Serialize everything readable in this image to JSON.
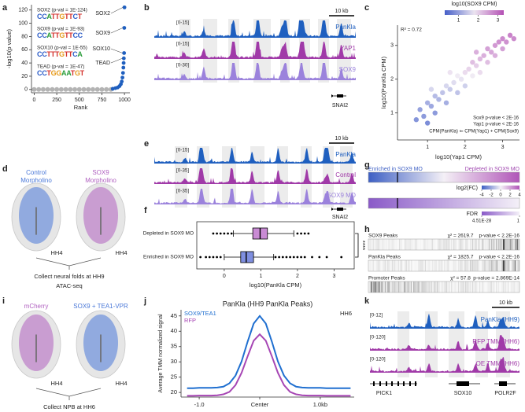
{
  "panel_labels": [
    "a",
    "b",
    "c",
    "d",
    "e",
    "f",
    "g",
    "h",
    "i",
    "j",
    "k"
  ],
  "chart_data": [
    {
      "type": "scatter",
      "xlabel": "Rank",
      "ylabel": "-log10(p value)",
      "xlim": [
        -30,
        1060
      ],
      "ylim": [
        -5,
        128
      ],
      "xticks": [
        0,
        250,
        500,
        750,
        1000
      ],
      "yticks": [
        0,
        20,
        40,
        60,
        80,
        100,
        120
      ],
      "series": [
        {
          "color": "#b3b3b3",
          "x": [
            0,
            50,
            100,
            150,
            200,
            250,
            300,
            350,
            400,
            450,
            500,
            550,
            600,
            650,
            700,
            750,
            800,
            850
          ],
          "values": [
            0,
            0,
            0,
            0,
            0,
            0,
            0,
            0,
            0,
            0,
            0,
            0,
            0,
            0,
            0,
            0,
            0,
            0
          ]
        },
        {
          "color": "#1f5fbf",
          "x": [
            870,
            900,
            925,
            945,
            960,
            970,
            978,
            984,
            988,
            991,
            993,
            996,
            998,
            1000
          ],
          "values": [
            1,
            2,
            3,
            5,
            8,
            12,
            18,
            25,
            33,
            40,
            47,
            55,
            93,
            124
          ]
        }
      ],
      "point_labels": [
        "SOX2",
        "SOX9",
        "SOX10",
        "TEAD"
      ],
      "motifs": [
        {
          "label": "SOX2 (p-val = 1E-124)",
          "logo": "CCATTGTTCT"
        },
        {
          "label": "SOX9 (p-val = 1E-93)",
          "logo": "CCATTGTTCC"
        },
        {
          "label": "SOX10 (p-val = 1E-55)",
          "logo": "CCTTTGTTCA"
        },
        {
          "label": "TEAD (p-val = 1E-47)",
          "logo": "CCTGGAATGT"
        }
      ]
    },
    {
      "type": "scatter",
      "xlabel": "log10(Yap1 CPM)",
      "ylabel": "log10(PanKla CPM)",
      "xlim": [
        0.2,
        3.45
      ],
      "ylim": [
        0.2,
        3.6
      ],
      "xticks": [
        1,
        2,
        3
      ],
      "yticks": [
        1,
        2,
        3
      ],
      "x": [
        0.7,
        0.8,
        0.9,
        1.0,
        1.0,
        1.1,
        1.2,
        1.2,
        1.3,
        1.4,
        1.5,
        1.5,
        1.6,
        1.7,
        1.8,
        1.8,
        1.9,
        2.0,
        2.0,
        2.1,
        2.2,
        2.2,
        2.3,
        2.4,
        2.4,
        2.5,
        2.6,
        2.6,
        2.7,
        2.8,
        2.8,
        2.9,
        3.0,
        3.0,
        3.1,
        3.2,
        3.3,
        1.1,
        1.6,
        2.3
      ],
      "values": [
        0.8,
        1.1,
        0.9,
        1.3,
        0.7,
        1.2,
        1.5,
        1.0,
        1.4,
        1.6,
        1.3,
        1.8,
        1.7,
        1.9,
        1.6,
        2.1,
        2.0,
        2.2,
        1.8,
        2.3,
        2.1,
        2.5,
        2.4,
        2.6,
        2.2,
        2.7,
        2.5,
        2.9,
        2.8,
        2.7,
        3.0,
        3.1,
        2.9,
        3.2,
        3.1,
        3.3,
        3.2,
        1.7,
        2.2,
        2.8
      ],
      "color_values": [
        0.5,
        0.7,
        0.6,
        0.9,
        0.4,
        0.8,
        1.1,
        0.6,
        1.0,
        1.2,
        0.9,
        1.5,
        1.3,
        1.6,
        1.2,
        1.8,
        1.7,
        2.0,
        1.4,
        2.1,
        1.8,
        2.4,
        2.2,
        2.5,
        2.0,
        2.6,
        2.4,
        2.8,
        2.7,
        2.6,
        2.9,
        3.0,
        2.8,
        3.1,
        3.0,
        3.2,
        3.1,
        1.5,
        1.9,
        2.6
      ],
      "colorbar_label": "log10(SOX9 CPM)",
      "clim": [
        0.3,
        3.3
      ],
      "cticks": [
        1,
        2,
        3
      ],
      "annotations": [
        "R² = 0.72",
        "Sox9 p-value < 2E-16",
        "Yap1 p-value < 2E-16",
        "CPM(PanKla) ⇐ CPM(Yap1) + CPM(Sox9)"
      ]
    },
    {
      "type": "box",
      "xlabel": "log10(PanKla CPM)",
      "xlim": [
        -0.75,
        3.55
      ],
      "xticks": [
        0,
        1,
        2,
        3
      ],
      "categories": [
        "Depleted in SOX9 MO",
        "Enriched in SOX9 MO"
      ],
      "colors": [
        "#c98bd4",
        "#7f8fe0"
      ],
      "boxes": [
        {
          "whislo": 0.25,
          "q1": 0.78,
          "med": 0.98,
          "q3": 1.18,
          "whishi": 1.9,
          "fliers": [
            -0.3,
            -0.2,
            -0.1,
            0.0,
            0.1,
            0.2,
            2.0,
            2.1,
            2.2,
            2.3
          ]
        },
        {
          "whislo": 0.0,
          "q1": 0.45,
          "med": 0.6,
          "q3": 0.8,
          "whishi": 1.35,
          "fliers": [
            -0.65,
            -0.5,
            -0.4,
            -0.3,
            -0.2,
            -0.1,
            1.4,
            1.5,
            1.6,
            1.7,
            1.8,
            1.9,
            2.0,
            2.1,
            2.2,
            2.4,
            2.6,
            2.8,
            3.2
          ]
        }
      ],
      "significance": "****"
    },
    {
      "type": "line",
      "title": "PanKla (HH9 PanKla Peaks)",
      "ylabel": "Average TMM normalized signal",
      "xlim": [
        -1.3,
        1.56
      ],
      "ylim": [
        18.5,
        47
      ],
      "xticks": [
        {
          "value": -1.0,
          "label": "-1.0"
        },
        {
          "value": 0,
          "label": "Center"
        },
        {
          "value": 1.0,
          "label": "1.0kb"
        }
      ],
      "yticks": [
        20,
        25,
        30,
        35,
        40,
        45
      ],
      "annotation": "HH6",
      "x": [
        -1.2,
        -1.1,
        -1.0,
        -0.9,
        -0.8,
        -0.7,
        -0.6,
        -0.5,
        -0.4,
        -0.3,
        -0.2,
        -0.1,
        0,
        0.1,
        0.2,
        0.3,
        0.4,
        0.5,
        0.6,
        0.7,
        0.8,
        0.9,
        1.0,
        1.1,
        1.2,
        1.3,
        1.4,
        1.5
      ],
      "series": [
        {
          "name": "SOX9/TEA1",
          "color": "#1f6fd0",
          "values": [
            21.4,
            21.4,
            21.5,
            21.5,
            21.5,
            21.6,
            21.9,
            23.0,
            25.5,
            30.1,
            36.6,
            42.5,
            45,
            42.5,
            36.6,
            30.1,
            25.5,
            23.0,
            21.9,
            21.6,
            21.5,
            21.5,
            21.5,
            21.4,
            21.4,
            21.4,
            21.4,
            21.4
          ]
        },
        {
          "name": "RFP",
          "color": "#a646b4",
          "values": [
            18.9,
            18.9,
            19,
            19,
            19,
            19.1,
            19.4,
            20.2,
            22.4,
            26.4,
            31.8,
            36.9,
            39,
            36.9,
            31.8,
            26.4,
            22.4,
            20.2,
            19.4,
            19.1,
            19,
            19,
            19,
            18.9,
            18.9,
            18.9,
            18.9,
            18.9
          ]
        }
      ]
    }
  ],
  "panel_b": {
    "scale_bar": "10 kb",
    "gene": "SNAI2",
    "tracks": [
      {
        "range": "[0-15]",
        "name": "PanKla",
        "color": "#1f5fbf"
      },
      {
        "range": "[0-15]",
        "name": "YAP1",
        "color": "#a03aa8"
      },
      {
        "range": "[0-30]",
        "name": "SOX9",
        "color": "#9b82dc"
      }
    ]
  },
  "panel_d": {
    "left": {
      "title": "Control",
      "subtitle": "Morpholino",
      "stage": "HH4",
      "color": "#4a78d8"
    },
    "right": {
      "title": "SOX9",
      "subtitle": "Morpholino",
      "stage": "HH4",
      "color": "#b060c0"
    },
    "steps": [
      "Collect neural folds at HH9",
      "ATAC-seq"
    ]
  },
  "panel_e": {
    "scale_bar": "10 kb",
    "gene": "SNAI2",
    "tracks": [
      {
        "range": "[0-15]",
        "name": "PanKla",
        "color": "#1f5fbf"
      },
      {
        "range": "[0-35]",
        "name": "Control",
        "color": "#a03aa8"
      },
      {
        "range": "[0-35]",
        "name": "SOX9 MO",
        "color": "#9b82dc"
      }
    ]
  },
  "panel_g": {
    "left_label": "Enriched in SOX9 MO",
    "right_label": "Depleted in SOX9 MO",
    "fc_label": "log2(FC)",
    "fc_lim": [
      -4,
      4
    ],
    "fc_ticks": [
      -4,
      -2,
      0,
      2,
      4
    ],
    "fdr_label": "FDR",
    "fdr_ticks": [
      {
        "value": 4.51e-28,
        "label": "4.51E-28"
      },
      1
    ]
  },
  "panel_h": {
    "rows": [
      {
        "label": "SOX9 Peaks",
        "stat": "χ² = 2619.7",
        "p": "p-value < 2.2E-16"
      },
      {
        "label": "PanKla Peaks",
        "stat": "χ² = 1825.7",
        "p": "p-value < 2.2E-16"
      },
      {
        "label": "Promoter Peaks",
        "stat": "χ² = 57.8",
        "p": "p-value = 2.869E-14"
      }
    ]
  },
  "panel_i": {
    "left": {
      "title": "mCherry",
      "stage": "HH4",
      "color": "#b060c0"
    },
    "right": {
      "title": "SOX9 + TEA1-VPR",
      "stage": "HH4",
      "color": "#4a78d8"
    },
    "steps": [
      "Collect NPB at HH6",
      "CUT&RUN for PanKla"
    ]
  },
  "panel_k": {
    "scale_bar": "10 kb",
    "genes": [
      "PICK1",
      "SOX10",
      "POLR2F"
    ],
    "tracks": [
      {
        "range": "[0-12]",
        "name": "PanKla (HH9)",
        "color": "#1f5fbf"
      },
      {
        "range": "[0-120]",
        "name": "RFP TMM (HH6)",
        "color": "#a03aa8"
      },
      {
        "range": "[0-120]",
        "name": "OE TMM (HH6)",
        "color": "#a03aa8"
      }
    ]
  }
}
